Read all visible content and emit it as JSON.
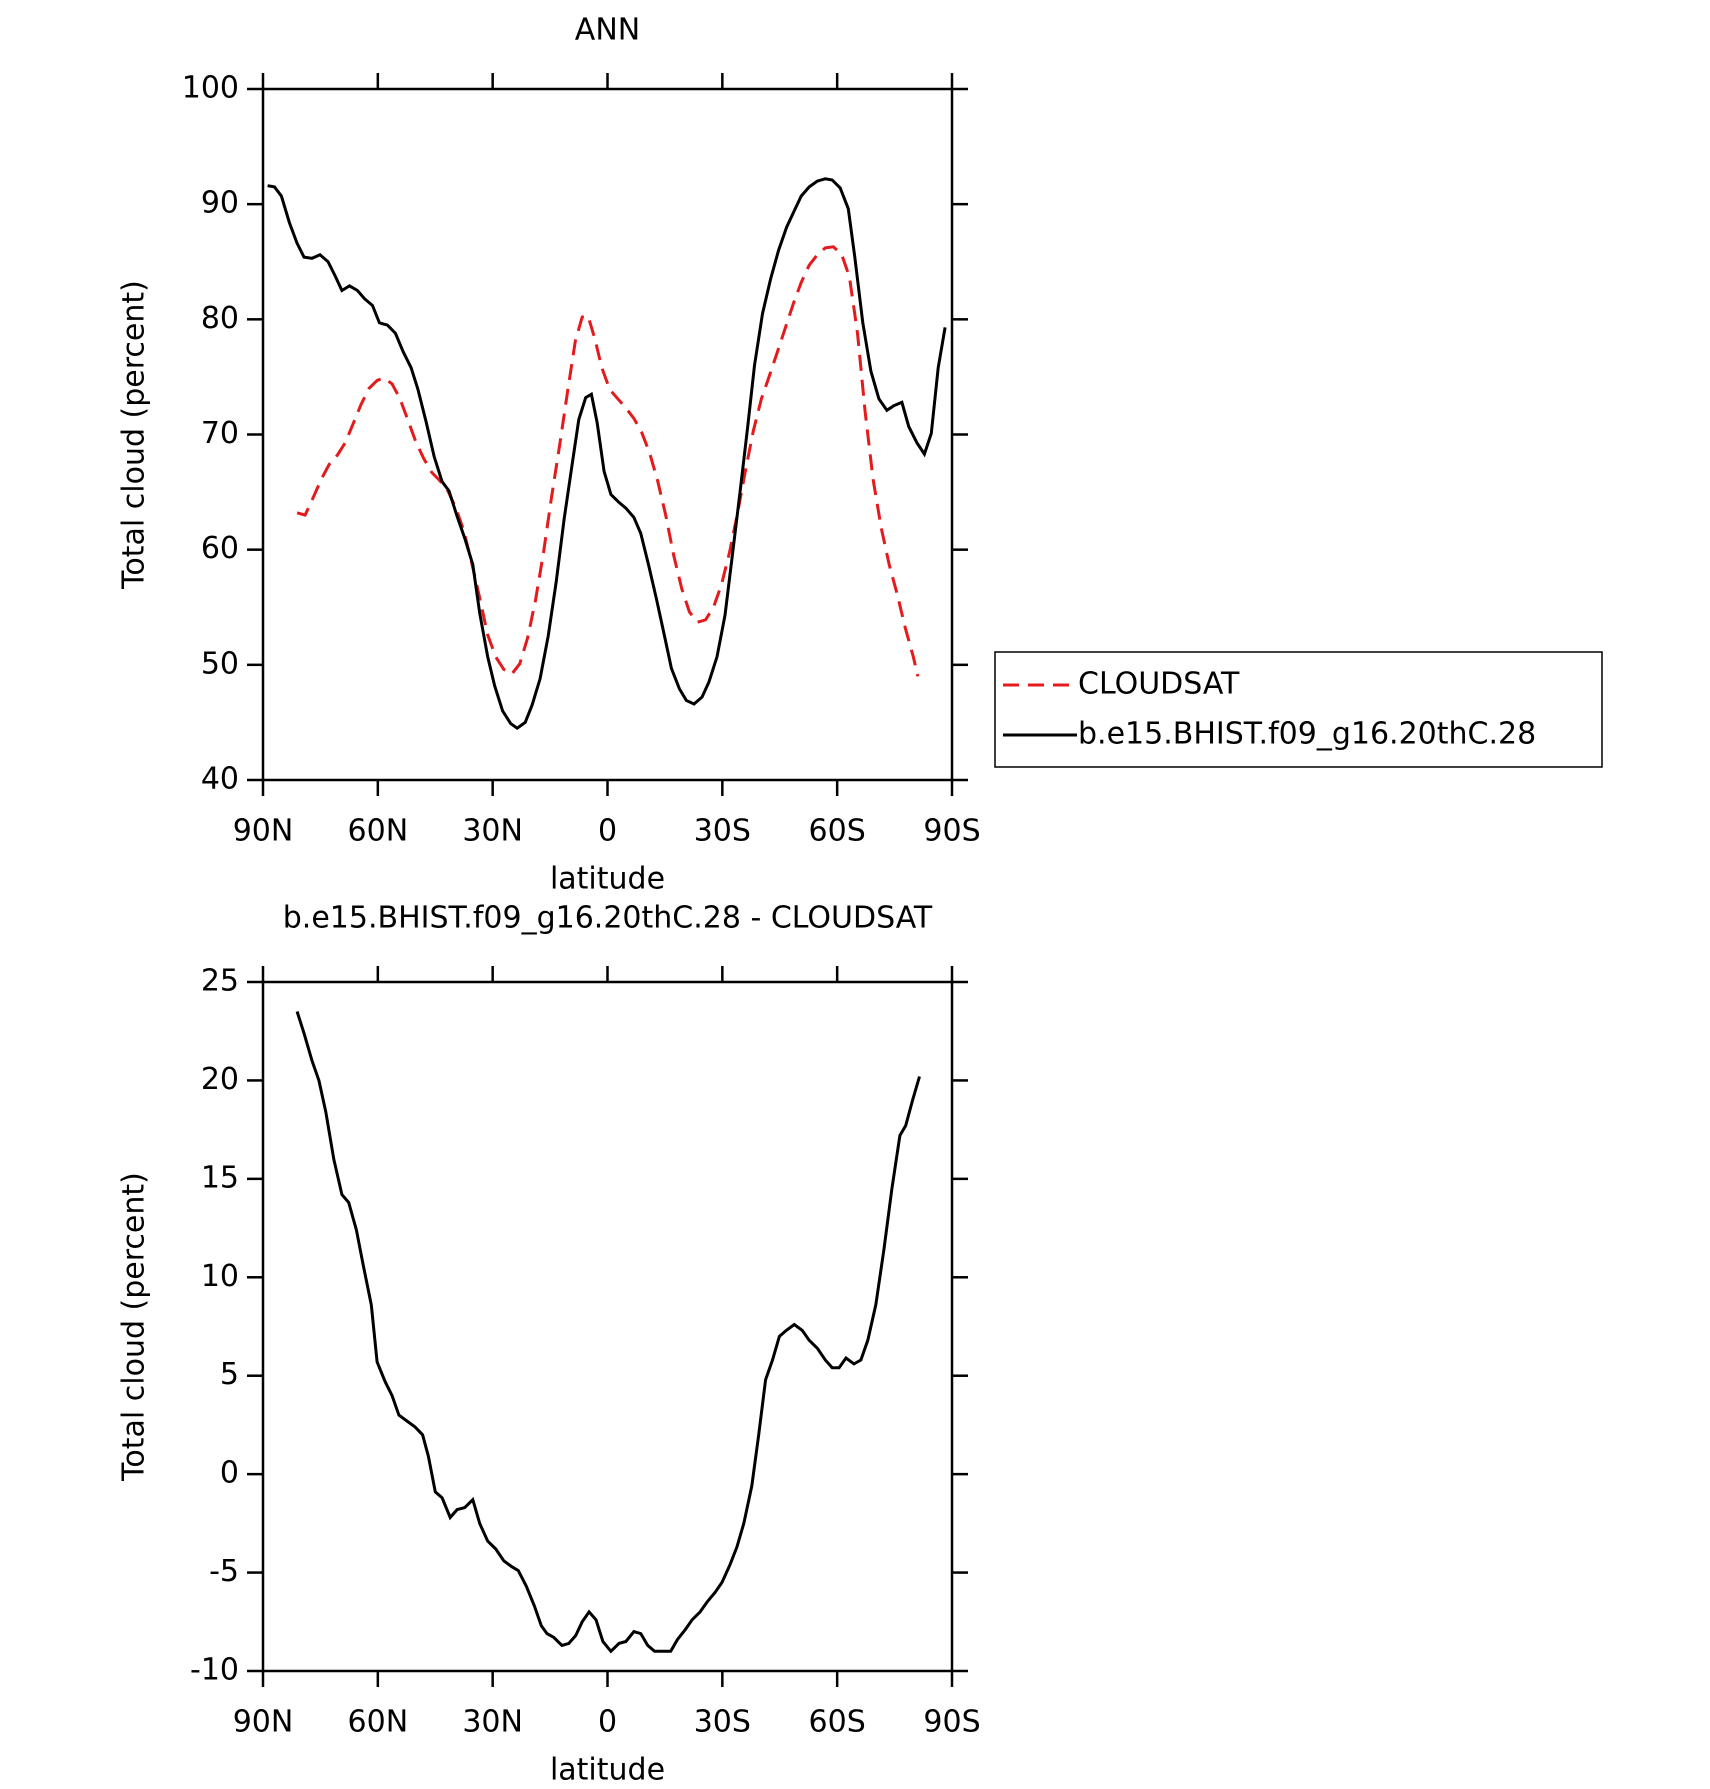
{
  "chart_data": [
    {
      "type": "line",
      "title": "ANN",
      "xlabel": "latitude",
      "ylabel": "Total cloud (percent)",
      "xlim": [
        90,
        -90
      ],
      "xticks": [
        {
          "value": 90,
          "label": "90N"
        },
        {
          "value": 60,
          "label": "60N"
        },
        {
          "value": 30,
          "label": "30N"
        },
        0,
        {
          "value": -30,
          "label": "30S"
        },
        {
          "value": -60,
          "label": "60S"
        },
        {
          "value": -90,
          "label": "90S"
        }
      ],
      "ylim": [
        40,
        100
      ],
      "yticks": [
        40,
        50,
        60,
        70,
        80,
        90,
        100
      ],
      "legend": "outside-right",
      "series": [
        {
          "name": "CLOUDSAT",
          "color": "#e41a1c",
          "style": "dashed",
          "x": [
            81.1,
            79.0,
            76.9,
            74.8,
            72.7,
            70.6,
            68.5,
            66.5,
            64.4,
            62.3,
            60.2,
            58.4,
            56.3,
            54.2,
            52.2,
            50.1,
            48.0,
            45.9,
            43.8,
            41.7,
            39.6,
            37.6,
            35.5,
            33.4,
            31.3,
            29.2,
            27.1,
            25.0,
            22.9,
            20.9,
            18.8,
            16.7,
            14.6,
            12.5,
            10.4,
            8.4,
            6.6,
            5.1,
            3.3,
            1.5,
            -0.6,
            -2.7,
            -4.8,
            -6.9,
            -8.9,
            -11.0,
            -13.1,
            -15.2,
            -17.3,
            -19.4,
            -21.4,
            -23.5,
            -25.6,
            -27.7,
            -29.8,
            -31.9,
            -34.0,
            -36.0,
            -38.1,
            -40.2,
            -42.3,
            -44.4,
            -46.5,
            -48.6,
            -50.6,
            -52.7,
            -54.8,
            -56.9,
            -59.0,
            -61.1,
            -63.2,
            -65.3,
            -67.3,
            -69.4,
            -71.5,
            -73.6,
            -75.7,
            -77.8,
            -79.9,
            -81.1
          ],
          "values": [
            63.2,
            63.0,
            64.5,
            66.1,
            67.4,
            68.2,
            69.3,
            70.9,
            72.6,
            74.0,
            74.7,
            74.9,
            74.4,
            73.1,
            71.3,
            69.4,
            67.9,
            66.7,
            66.0,
            65.1,
            63.6,
            61.7,
            58.9,
            55.8,
            52.6,
            50.7,
            49.6,
            49.2,
            50.1,
            52.3,
            55.6,
            59.8,
            64.6,
            69.1,
            73.8,
            78.1,
            80.2,
            80.3,
            78.3,
            75.8,
            73.9,
            73.1,
            72.3,
            71.4,
            70.2,
            68.4,
            66.0,
            63.0,
            59.5,
            56.6,
            54.6,
            53.7,
            53.9,
            55.0,
            57.0,
            59.8,
            63.2,
            66.8,
            70.3,
            73.1,
            75.1,
            77.2,
            79.3,
            81.4,
            83.2,
            84.7,
            85.6,
            86.2,
            86.3,
            85.7,
            83.7,
            78.8,
            72.0,
            66.1,
            61.9,
            58.7,
            56.1,
            53.2,
            50.7,
            49.0
          ]
        },
        {
          "name": "b.e15.BHIST.f09_g16.20thC.28",
          "color": "#000000",
          "style": "solid",
          "x": [
            88.8,
            87,
            85.2,
            83.1,
            81.1,
            79.3,
            77.2,
            75.1,
            73,
            71.2,
            69.4,
            67.4,
            65.3,
            63.5,
            61.4,
            59.6,
            57.5,
            55.4,
            53.4,
            51.3,
            49.5,
            47.4,
            45.3,
            43.2,
            41.4,
            39.3,
            37.3,
            35.2,
            33.4,
            31.3,
            29.5,
            27.4,
            25.3,
            23.6,
            21.5,
            19.7,
            17.6,
            15.5,
            13.4,
            11.3,
            9.2,
            7.5,
            5.7,
            4.2,
            2.7,
            0.9,
            -0.9,
            -3.0,
            -4.8,
            -6.9,
            -8.7,
            -10.7,
            -12.8,
            -14.9,
            -16.7,
            -18.8,
            -20.6,
            -22.6,
            -24.7,
            -26.5,
            -28.6,
            -30.7,
            -32.5,
            -34.6,
            -36.6,
            -38.4,
            -40.5,
            -42.6,
            -44.7,
            -46.8,
            -48.9,
            -50.6,
            -52.7,
            -54.8,
            -56.9,
            -58.7,
            -60.8,
            -62.9,
            -64.6,
            -66.7,
            -68.8,
            -70.9,
            -73,
            -74.8,
            -76.9,
            -78.7,
            -80.8,
            -82.8,
            -84.6,
            -86.4,
            -88.2
          ],
          "values": [
            91.6,
            91.5,
            90.7,
            88.4,
            86.6,
            85.4,
            85.3,
            85.6,
            85.0,
            83.8,
            82.5,
            82.9,
            82.5,
            81.8,
            81.2,
            79.7,
            79.5,
            78.8,
            77.2,
            75.8,
            73.9,
            71.1,
            68.1,
            65.9,
            65.1,
            62.9,
            61.0,
            58.7,
            54.5,
            50.7,
            48.2,
            46.0,
            44.9,
            44.5,
            45.0,
            46.5,
            48.8,
            52.5,
            57.2,
            62.7,
            67.5,
            71.3,
            73.2,
            73.5,
            71.0,
            66.8,
            64.8,
            64.1,
            63.6,
            62.8,
            61.4,
            58.7,
            55.7,
            52.5,
            49.7,
            47.9,
            46.9,
            46.6,
            47.2,
            48.5,
            50.7,
            54.3,
            59.2,
            64.9,
            70.6,
            76.0,
            80.5,
            83.5,
            86.0,
            88.0,
            89.5,
            90.7,
            91.5,
            92.0,
            92.2,
            92.1,
            91.4,
            89.6,
            85.4,
            79.7,
            75.5,
            73.1,
            72.1,
            72.5,
            72.8,
            70.7,
            69.3,
            68.3,
            70.1,
            75.8,
            79.3
          ]
        }
      ]
    },
    {
      "type": "line",
      "title": "b.e15.BHIST.f09_g16.20thC.28 - CLOUDSAT",
      "xlabel": "latitude",
      "ylabel": "Total cloud (percent)",
      "xlim": [
        90,
        -90
      ],
      "xticks": [
        {
          "value": 90,
          "label": "90N"
        },
        {
          "value": 60,
          "label": "60N"
        },
        {
          "value": 30,
          "label": "30N"
        },
        0,
        {
          "value": -30,
          "label": "30S"
        },
        {
          "value": -60,
          "label": "60S"
        },
        {
          "value": -90,
          "label": "90S"
        }
      ],
      "ylim": [
        -10,
        25
      ],
      "yticks": [
        -10,
        -5,
        0,
        5,
        10,
        15,
        20,
        25
      ],
      "series": [
        {
          "color": "#000000",
          "style": "solid",
          "x": [
            81.1,
            79.3,
            77.2,
            75.4,
            73.6,
            71.5,
            69.4,
            67.6,
            65.6,
            63.8,
            61.7,
            60.2,
            58.1,
            56.3,
            54.5,
            52.4,
            50.3,
            48.3,
            46.8,
            45.0,
            43.2,
            41.1,
            39.3,
            37.3,
            35.2,
            33.4,
            31.3,
            29.2,
            27.1,
            25.0,
            23.3,
            21.2,
            19.1,
            17.3,
            15.8,
            14.0,
            11.9,
            10.1,
            8.3,
            6.6,
            4.8,
            3.0,
            1.2,
            -0.9,
            -3.0,
            -4.8,
            -6.9,
            -8.7,
            -10.5,
            -12.3,
            -14.4,
            -16.5,
            -18.3,
            -20.3,
            -22.1,
            -24.2,
            -26.0,
            -28.1,
            -29.9,
            -32.0,
            -33.8,
            -35.6,
            -37.7,
            -39.5,
            -41.3,
            -43.1,
            -44.9,
            -46.7,
            -48.8,
            -50.9,
            -52.7,
            -54.8,
            -56.9,
            -58.7,
            -60.5,
            -62.3,
            -64.4,
            -66.2,
            -68.0,
            -70.1,
            -72.2,
            -74.3,
            -76.4,
            -77.9,
            -79.7,
            -81.5
          ],
          "values": [
            23.5,
            22.4,
            21.0,
            20.0,
            18.4,
            16.0,
            14.2,
            13.8,
            12.4,
            10.6,
            8.6,
            5.7,
            4.7,
            4.0,
            3.0,
            2.7,
            2.4,
            2.0,
            0.9,
            -0.9,
            -1.2,
            -2.2,
            -1.8,
            -1.7,
            -1.3,
            -2.5,
            -3.4,
            -3.8,
            -4.4,
            -4.7,
            -4.9,
            -5.7,
            -6.7,
            -7.7,
            -8.1,
            -8.3,
            -8.7,
            -8.6,
            -8.2,
            -7.5,
            -7.0,
            -7.4,
            -8.5,
            -9.0,
            -8.6,
            -8.5,
            -8.0,
            -8.1,
            -8.7,
            -9.0,
            -9.0,
            -9.0,
            -8.4,
            -7.9,
            -7.4,
            -7.0,
            -6.5,
            -6.0,
            -5.5,
            -4.6,
            -3.7,
            -2.5,
            -0.6,
            2.0,
            4.8,
            5.8,
            7.0,
            7.3,
            7.6,
            7.3,
            6.8,
            6.4,
            5.8,
            5.4,
            5.4,
            5.9,
            5.6,
            5.8,
            6.8,
            8.6,
            11.4,
            14.5,
            17.2,
            17.7,
            19.0,
            20.2
          ]
        }
      ]
    }
  ]
}
